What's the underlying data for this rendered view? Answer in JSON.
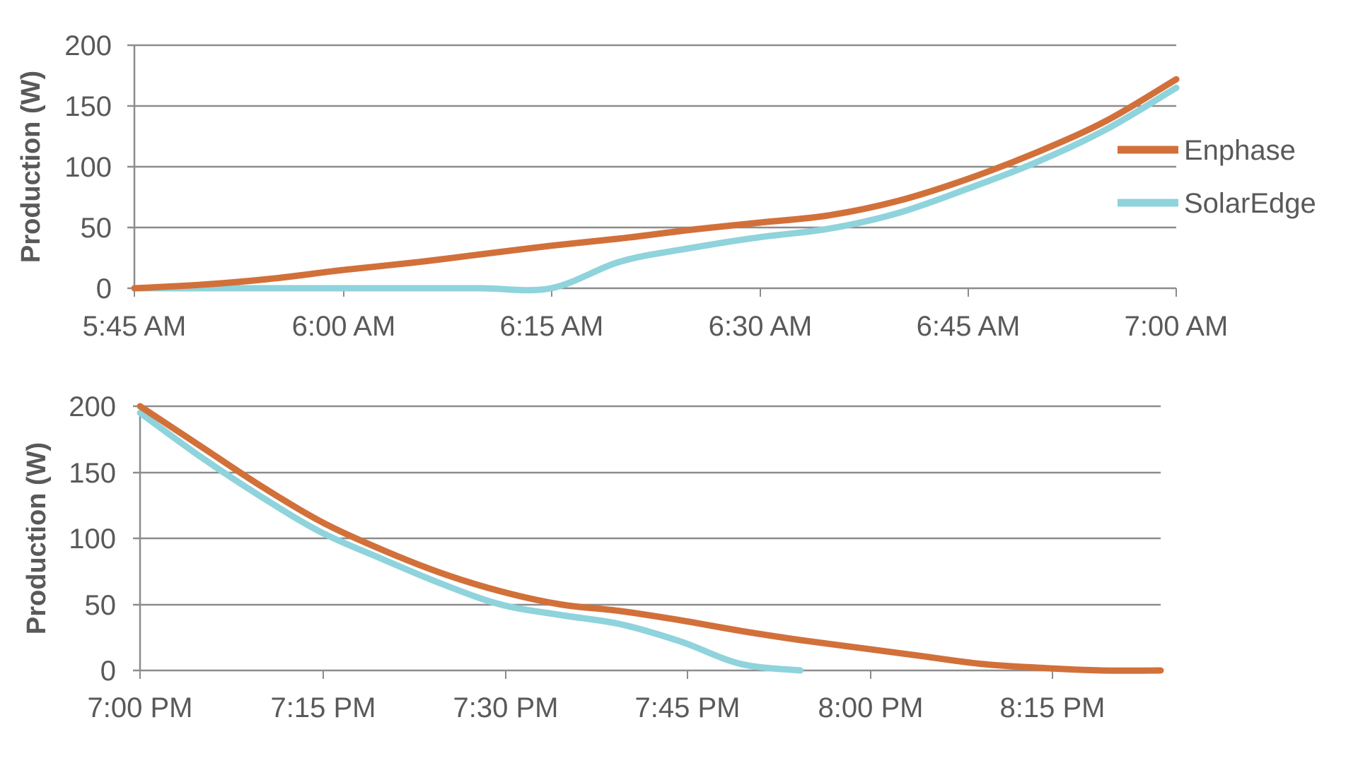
{
  "colors": {
    "enphase": "#d2703a",
    "solaredge": "#8fd3dc",
    "axis": "#8c8c8c",
    "text": "#595959"
  },
  "legend": [
    {
      "label": "Enphase",
      "color": "#d2703a"
    },
    {
      "label": "SolarEdge",
      "color": "#8fd3dc"
    }
  ],
  "charts": [
    {
      "id": "morning",
      "ylabel": "Production (W)",
      "yticks": [
        "0",
        "50",
        "100",
        "150",
        "200"
      ],
      "xticks": [
        "5:45 AM",
        "6:00 AM",
        "6:15 AM",
        "6:30 AM",
        "6:45 AM",
        "7:00 AM"
      ]
    },
    {
      "id": "evening",
      "ylabel": "Production (W)",
      "yticks": [
        "0",
        "50",
        "100",
        "150",
        "200"
      ],
      "xticks": [
        "7:00 PM",
        "7:15 PM",
        "7:30 PM",
        "7:45 PM",
        "8:00 PM",
        "8:15 PM"
      ]
    }
  ],
  "chart_data": [
    {
      "type": "line",
      "title": "",
      "xlabel": "",
      "ylabel": "Production (W)",
      "ylim": [
        0,
        200
      ],
      "grid": true,
      "legend_position": "right",
      "x": [
        "5:45 AM",
        "5:50 AM",
        "5:55 AM",
        "6:00 AM",
        "6:05 AM",
        "6:10 AM",
        "6:15 AM",
        "6:20 AM",
        "6:25 AM",
        "6:30 AM",
        "6:35 AM",
        "6:40 AM",
        "6:45 AM",
        "6:50 AM",
        "6:55 AM",
        "7:00 AM"
      ],
      "xtick_labels": [
        "5:45 AM",
        "6:00 AM",
        "6:15 AM",
        "6:30 AM",
        "6:45 AM",
        "7:00 AM"
      ],
      "series": [
        {
          "name": "Enphase",
          "values": [
            0,
            3,
            8,
            15,
            21,
            28,
            35,
            41,
            48,
            54,
            60,
            72,
            90,
            112,
            138,
            172
          ]
        },
        {
          "name": "SolarEdge",
          "values": [
            0,
            0,
            0,
            0,
            0,
            0,
            0,
            22,
            33,
            42,
            49,
            62,
            82,
            104,
            131,
            165
          ]
        }
      ]
    },
    {
      "type": "line",
      "title": "",
      "xlabel": "",
      "ylabel": "Production (W)",
      "ylim": [
        0,
        200
      ],
      "grid": true,
      "x": [
        "7:00 PM",
        "7:05 PM",
        "7:10 PM",
        "7:15 PM",
        "7:20 PM",
        "7:25 PM",
        "7:30 PM",
        "7:35 PM",
        "7:40 PM",
        "7:45 PM",
        "7:50 PM",
        "7:55 PM",
        "8:00 PM",
        "8:05 PM",
        "8:10 PM",
        "8:15 PM",
        "8:20 PM",
        "8:25 PM"
      ],
      "xtick_labels": [
        "7:00 PM",
        "7:15 PM",
        "7:30 PM",
        "7:45 PM",
        "8:00 PM",
        "8:15 PM"
      ],
      "series": [
        {
          "name": "Enphase",
          "values": [
            200,
            170,
            140,
            113,
            92,
            74,
            60,
            50,
            45,
            38,
            30,
            23,
            17,
            11,
            5,
            2,
            0,
            0
          ]
        },
        {
          "name": "SolarEdge",
          "values": [
            195,
            162,
            132,
            105,
            85,
            66,
            50,
            42,
            35,
            22,
            5,
            0,
            null,
            null,
            null,
            null,
            null,
            null
          ]
        }
      ]
    }
  ]
}
